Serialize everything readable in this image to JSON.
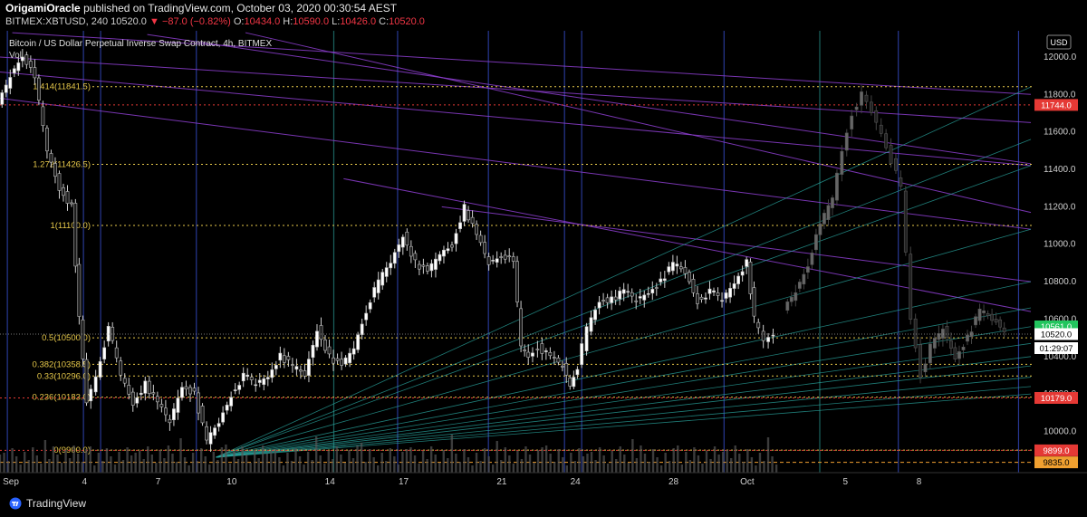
{
  "header": {
    "author": "OrigamiOracle",
    "published_text": "published on TradingView.com, October 03, 2020 00:30:54 AEST",
    "symbol": "BITMEX:XBTUSD, 240",
    "last": "10520.0",
    "change": "−87.0 (−0.82%)",
    "o_label": "O:",
    "o": "10434.0",
    "h_label": "H:",
    "h": "10590.0",
    "l_label": "L:",
    "l": "10426.0",
    "c_label": "C:",
    "c": "10520.0"
  },
  "footer": {
    "brand": "TradingView"
  },
  "colors": {
    "up": "#ffffff",
    "down": "#1b1b1b",
    "wick": "#cfcfcf",
    "fib": "#e6c84a",
    "red_line": "#e53935",
    "fan": "#2aa7a0",
    "purple": "#8e3fd0",
    "blue_vline": "#2c3fa3",
    "teal_vline": "#1e6e6a"
  },
  "chart_data": {
    "type": "candlestick",
    "title": "Bitcoin / US Dollar Perpetual Inverse Swap Contract, 4h, BITMEX",
    "volume_label": "Vol",
    "currency": "USD",
    "ylim": [
      9780,
      12140
    ],
    "y_ticks": [
      10000,
      10200,
      10400,
      10600,
      10800,
      11000,
      11200,
      11400,
      11600,
      11800,
      12000
    ],
    "x_ticks": [
      {
        "label": "Sep",
        "day": 0
      },
      {
        "label": "4",
        "day": 3
      },
      {
        "label": "7",
        "day": 6
      },
      {
        "label": "10",
        "day": 9
      },
      {
        "label": "14",
        "day": 13
      },
      {
        "label": "17",
        "day": 16
      },
      {
        "label": "21",
        "day": 20
      },
      {
        "label": "24",
        "day": 23
      },
      {
        "label": "28",
        "day": 27
      },
      {
        "label": "Oct",
        "day": 30
      },
      {
        "label": "5",
        "day": 34
      },
      {
        "label": "8",
        "day": 37
      }
    ],
    "x_range_days": [
      0,
      42
    ],
    "fib_levels": [
      {
        "label": "1.414(11841.5)",
        "price": 11841.5
      },
      {
        "label": "1.272(11426.5)",
        "price": 11426.5
      },
      {
        "label": "1(11100.0)",
        "price": 11100.0
      },
      {
        "label": "0.5(10500.0)",
        "price": 10500.0
      },
      {
        "label": "0.382(10358.5)",
        "price": 10358.5
      },
      {
        "label": "0.33(10296.0)",
        "price": 10296.0
      },
      {
        "label": "0.236(10183.0)",
        "price": 10183.0
      },
      {
        "label": "0(9900.0)",
        "price": 9900.0
      }
    ],
    "price_badges": [
      {
        "value": "11744.0",
        "price": 11744.0,
        "bg": "#e53935",
        "fg": "#ffffff"
      },
      {
        "value": "10561.0",
        "price": 10561.0,
        "bg": "#22c55e",
        "fg": "#ffffff"
      },
      {
        "value": "10520.0",
        "price": 10520.0,
        "bg": "#ffffff",
        "fg": "#000000"
      },
      {
        "value": "01:29:07",
        "price": 10445.0,
        "bg": "#ffffff",
        "fg": "#000000"
      },
      {
        "value": "10179.0",
        "price": 10179.0,
        "bg": "#e53935",
        "fg": "#ffffff"
      },
      {
        "value": "9899.0",
        "price": 9899.0,
        "bg": "#e53935",
        "fg": "#ffffff"
      },
      {
        "value": "9835.0",
        "price": 9835.0,
        "bg": "#f0a030",
        "fg": "#000000"
      }
    ],
    "red_lines": [
      11744.0,
      10179.0,
      9899.0
    ],
    "orange_line": 9835.0,
    "vertical_marks": [
      {
        "day": 0.3,
        "color": "blue"
      },
      {
        "day": 3.4,
        "color": "blue"
      },
      {
        "day": 4.1,
        "color": "blue"
      },
      {
        "day": 8.0,
        "color": "blue"
      },
      {
        "day": 13.6,
        "color": "teal"
      },
      {
        "day": 16.2,
        "color": "blue"
      },
      {
        "day": 19.9,
        "color": "blue"
      },
      {
        "day": 23.0,
        "color": "blue"
      },
      {
        "day": 23.7,
        "color": "blue"
      },
      {
        "day": 29.5,
        "color": "blue"
      },
      {
        "day": 33.4,
        "color": "teal"
      },
      {
        "day": 36.6,
        "color": "blue"
      },
      {
        "day": 41.5,
        "color": "blue"
      }
    ],
    "price_path": [
      [
        0.0,
        11750
      ],
      [
        0.5,
        11900
      ],
      [
        1.0,
        12020
      ],
      [
        1.5,
        11880
      ],
      [
        2.0,
        11500
      ],
      [
        2.5,
        11300
      ],
      [
        3.0,
        11200
      ],
      [
        3.3,
        10600
      ],
      [
        3.6,
        10150
      ],
      [
        4.0,
        10300
      ],
      [
        4.5,
        10550
      ],
      [
        5.0,
        10300
      ],
      [
        5.5,
        10150
      ],
      [
        6.0,
        10250
      ],
      [
        6.5,
        10150
      ],
      [
        7.0,
        10050
      ],
      [
        7.5,
        10250
      ],
      [
        8.0,
        10200
      ],
      [
        8.5,
        9950
      ],
      [
        9.0,
        10050
      ],
      [
        9.5,
        10200
      ],
      [
        10.0,
        10300
      ],
      [
        10.5,
        10250
      ],
      [
        11.0,
        10300
      ],
      [
        11.5,
        10400
      ],
      [
        12.0,
        10350
      ],
      [
        12.5,
        10300
      ],
      [
        13.0,
        10550
      ],
      [
        13.5,
        10400
      ],
      [
        14.0,
        10350
      ],
      [
        14.5,
        10450
      ],
      [
        15.0,
        10650
      ],
      [
        15.5,
        10800
      ],
      [
        16.0,
        10900
      ],
      [
        16.5,
        11050
      ],
      [
        17.0,
        10900
      ],
      [
        17.5,
        10850
      ],
      [
        18.0,
        10950
      ],
      [
        18.5,
        11000
      ],
      [
        19.0,
        11200
      ],
      [
        19.5,
        11050
      ],
      [
        20.0,
        10900
      ],
      [
        20.5,
        10950
      ],
      [
        21.0,
        10900
      ],
      [
        21.3,
        10450
      ],
      [
        21.6,
        10400
      ],
      [
        22.0,
        10450
      ],
      [
        22.5,
        10400
      ],
      [
        23.0,
        10350
      ],
      [
        23.3,
        10250
      ],
      [
        23.6,
        10350
      ],
      [
        24.0,
        10550
      ],
      [
        24.5,
        10700
      ],
      [
        25.0,
        10700
      ],
      [
        25.5,
        10750
      ],
      [
        26.0,
        10700
      ],
      [
        26.5,
        10750
      ],
      [
        27.0,
        10800
      ],
      [
        27.5,
        10900
      ],
      [
        28.0,
        10850
      ],
      [
        28.5,
        10700
      ],
      [
        29.0,
        10750
      ],
      [
        29.5,
        10700
      ],
      [
        30.0,
        10800
      ],
      [
        30.5,
        10900
      ],
      [
        30.8,
        10600
      ],
      [
        31.2,
        10480
      ],
      [
        31.6,
        10520
      ]
    ],
    "faded_path": [
      [
        32.0,
        10650
      ],
      [
        32.5,
        10750
      ],
      [
        33.0,
        10900
      ],
      [
        33.5,
        11100
      ],
      [
        34.0,
        11250
      ],
      [
        34.4,
        11500
      ],
      [
        34.8,
        11700
      ],
      [
        35.2,
        11800
      ],
      [
        35.6,
        11700
      ],
      [
        36.0,
        11600
      ],
      [
        36.4,
        11450
      ],
      [
        36.8,
        11300
      ],
      [
        37.2,
        10600
      ],
      [
        37.6,
        10300
      ],
      [
        38.0,
        10450
      ],
      [
        38.5,
        10550
      ],
      [
        39.0,
        10400
      ],
      [
        39.5,
        10500
      ],
      [
        40.0,
        10650
      ],
      [
        40.5,
        10600
      ],
      [
        41.0,
        10550
      ]
    ],
    "fan_origin": {
      "day": 8.8,
      "price": 9862
    },
    "fan_targets": [
      11840,
      11560,
      11420,
      11080,
      10800,
      10660,
      10560,
      10470,
      10400,
      10350,
      10290,
      10240,
      10200
    ],
    "diag_lines": [
      {
        "from": [
          0.5,
          12130
        ],
        "to": [
          42,
          11800
        ]
      },
      {
        "from": [
          0.0,
          12000
        ],
        "to": [
          42,
          11650
        ]
      },
      {
        "from": [
          6.0,
          12120
        ],
        "to": [
          42,
          11430
        ]
      },
      {
        "from": [
          0.0,
          11920
        ],
        "to": [
          42,
          11420
        ]
      },
      {
        "from": [
          10.0,
          12130
        ],
        "to": [
          42,
          11170
        ]
      },
      {
        "from": [
          0.0,
          11780
        ],
        "to": [
          42,
          11080
        ]
      },
      {
        "from": [
          14.0,
          11350
        ],
        "to": [
          42,
          10640
        ]
      },
      {
        "from": [
          18.0,
          11200
        ],
        "to": [
          42,
          10800
        ]
      }
    ]
  }
}
